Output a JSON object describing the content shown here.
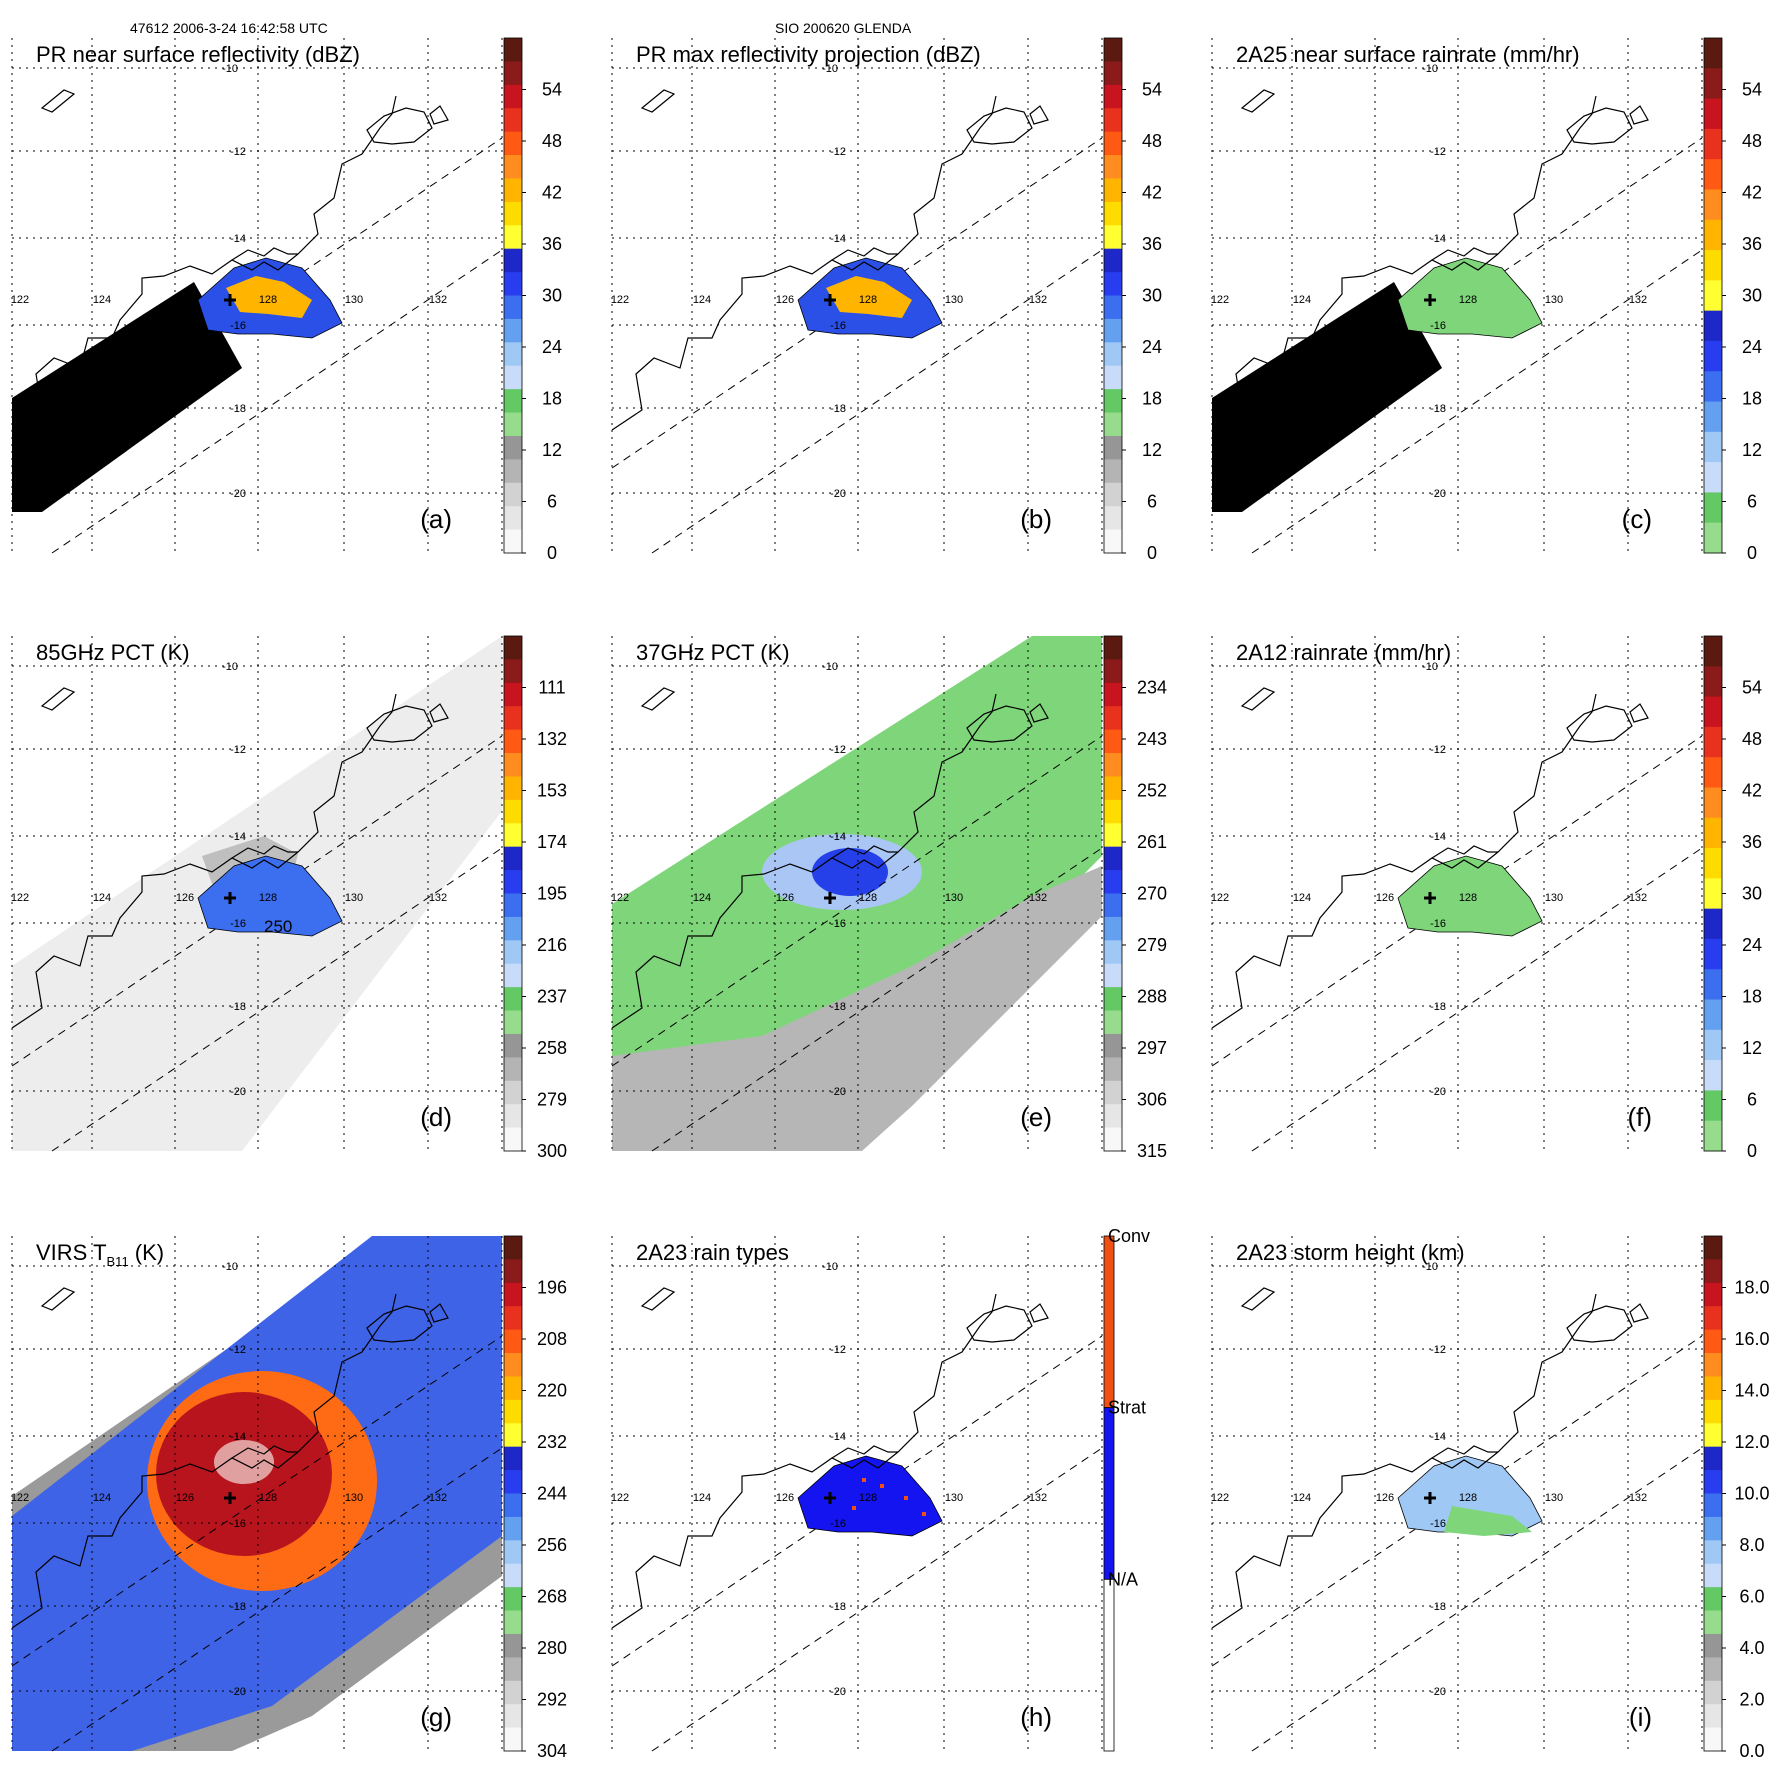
{
  "header": {
    "orbit_time": "47612 2006-3-24 16:42:58 UTC",
    "storm_id": "SIO 200620 GLENDA"
  },
  "map": {
    "lon_ticks": [
      "122",
      "124",
      "126",
      "128",
      "130",
      "132"
    ],
    "lat_ticks": [
      "-10",
      "-12",
      "-14",
      "-16",
      "-18",
      "-20"
    ]
  },
  "panels": [
    {
      "id": "a",
      "title": "PR near surface reflectivity (dBZ)",
      "letter": "(a)",
      "colorbar": {
        "labels": [
          "54",
          "48",
          "42",
          "36",
          "30",
          "24",
          "18",
          "12",
          "6",
          "0"
        ],
        "colors": [
          "#5a1a10",
          "#8b1a1a",
          "#c8141e",
          "#e8321e",
          "#ff5a14",
          "#ff8c1e",
          "#ffb400",
          "#ffdc00",
          "#ffff32",
          "#1e28c8",
          "#283cf0",
          "#3c6ef0",
          "#64a0f0",
          "#a0c8f5",
          "#c8dcfa",
          "#64c864",
          "#96dc8c",
          "#969696",
          "#b4b4b4",
          "#d2d2d2",
          "#e6e6e6",
          "#f8f8f8"
        ]
      }
    },
    {
      "id": "b",
      "title": "PR max reflectivity projection (dBZ)",
      "letter": "(b)",
      "colorbar": {
        "labels": [
          "54",
          "48",
          "42",
          "36",
          "30",
          "24",
          "18",
          "12",
          "6",
          "0"
        ],
        "colors": [
          "#5a1a10",
          "#8b1a1a",
          "#c8141e",
          "#e8321e",
          "#ff5a14",
          "#ff8c1e",
          "#ffb400",
          "#ffdc00",
          "#ffff32",
          "#1e28c8",
          "#283cf0",
          "#3c6ef0",
          "#64a0f0",
          "#a0c8f5",
          "#c8dcfa",
          "#64c864",
          "#96dc8c",
          "#969696",
          "#b4b4b4",
          "#d2d2d2",
          "#e6e6e6",
          "#f8f8f8"
        ]
      }
    },
    {
      "id": "c",
      "title": "2A25 near surface rainrate (mm/hr)",
      "letter": "(c)",
      "colorbar": {
        "labels": [
          "54",
          "48",
          "42",
          "36",
          "30",
          "24",
          "18",
          "12",
          "6",
          "0"
        ],
        "colors": [
          "#5a1a10",
          "#8b1a1a",
          "#c8141e",
          "#e8321e",
          "#ff5a14",
          "#ff8c1e",
          "#ffb400",
          "#ffdc00",
          "#ffff32",
          "#1e28c8",
          "#283cf0",
          "#3c6ef0",
          "#64a0f0",
          "#a0c8f5",
          "#c8dcfa",
          "#64c864",
          "#96dc8c"
        ]
      }
    },
    {
      "id": "d",
      "title": "85GHz PCT (K)",
      "letter": "(d)",
      "colorbar": {
        "labels": [
          "111",
          "132",
          "153",
          "174",
          "195",
          "216",
          "237",
          "258",
          "279",
          "300"
        ],
        "colors": [
          "#5a1a10",
          "#8b1a1a",
          "#c8141e",
          "#e8321e",
          "#ff5a14",
          "#ff8c1e",
          "#ffb400",
          "#ffdc00",
          "#ffff32",
          "#1e28c8",
          "#283cf0",
          "#3c6ef0",
          "#64a0f0",
          "#a0c8f5",
          "#c8dcfa",
          "#64c864",
          "#96dc8c",
          "#969696",
          "#b4b4b4",
          "#d2d2d2",
          "#e6e6e6",
          "#f8f8f8"
        ]
      },
      "contour_label": "250"
    },
    {
      "id": "e",
      "title": "37GHz PCT (K)",
      "letter": "(e)",
      "colorbar": {
        "labels": [
          "234",
          "243",
          "252",
          "261",
          "270",
          "279",
          "288",
          "297",
          "306",
          "315"
        ],
        "colors": [
          "#5a1a10",
          "#8b1a1a",
          "#c8141e",
          "#e8321e",
          "#ff5a14",
          "#ff8c1e",
          "#ffb400",
          "#ffdc00",
          "#ffff32",
          "#1e28c8",
          "#283cf0",
          "#3c6ef0",
          "#64a0f0",
          "#a0c8f5",
          "#c8dcfa",
          "#64c864",
          "#96dc8c",
          "#969696",
          "#b4b4b4",
          "#d2d2d2",
          "#e6e6e6",
          "#f8f8f8"
        ]
      }
    },
    {
      "id": "f",
      "title": "2A12 rainrate (mm/hr)",
      "letter": "(f)",
      "colorbar": {
        "labels": [
          "54",
          "48",
          "42",
          "36",
          "30",
          "24",
          "18",
          "12",
          "6",
          "0"
        ],
        "colors": [
          "#5a1a10",
          "#8b1a1a",
          "#c8141e",
          "#e8321e",
          "#ff5a14",
          "#ff8c1e",
          "#ffb400",
          "#ffdc00",
          "#ffff32",
          "#1e28c8",
          "#283cf0",
          "#3c6ef0",
          "#64a0f0",
          "#a0c8f5",
          "#c8dcfa",
          "#64c864",
          "#96dc8c"
        ]
      }
    },
    {
      "id": "g",
      "title": "VIRS T",
      "title_sub": "B11",
      "title_suffix": " (K)",
      "letter": "(g)",
      "colorbar": {
        "labels": [
          "196",
          "208",
          "220",
          "232",
          "244",
          "256",
          "268",
          "280",
          "292",
          "304"
        ],
        "colors": [
          "#5a1a10",
          "#8b1a1a",
          "#c8141e",
          "#e8321e",
          "#ff5a14",
          "#ff8c1e",
          "#ffb400",
          "#ffdc00",
          "#ffff32",
          "#1e28c8",
          "#283cf0",
          "#3c6ef0",
          "#64a0f0",
          "#a0c8f5",
          "#c8dcfa",
          "#64c864",
          "#96dc8c",
          "#969696",
          "#b4b4b4",
          "#d2d2d2",
          "#e6e6e6",
          "#f8f8f8"
        ]
      }
    },
    {
      "id": "h",
      "title": "2A23 rain types",
      "letter": "(h)",
      "legend": {
        "labels": [
          "Conv",
          "Strat",
          "N/A"
        ],
        "colors": [
          "#f05014",
          "#1414f0",
          "#ffffff"
        ]
      }
    },
    {
      "id": "i",
      "title": "2A23 storm height (km)",
      "letter": "(i)",
      "colorbar": {
        "labels": [
          "18.0",
          "16.0",
          "14.0",
          "12.0",
          "10.0",
          "8.0",
          "6.0",
          "4.0",
          "2.0",
          "0.0"
        ],
        "colors": [
          "#5a1a10",
          "#8b1a1a",
          "#c8141e",
          "#e8321e",
          "#ff5a14",
          "#ff8c1e",
          "#ffb400",
          "#ffdc00",
          "#ffff32",
          "#1e28c8",
          "#283cf0",
          "#3c6ef0",
          "#64a0f0",
          "#a0c8f5",
          "#c8dcfa",
          "#64c864",
          "#96dc8c",
          "#969696",
          "#b4b4b4",
          "#d2d2d2",
          "#e6e6e6",
          "#f8f8f8"
        ]
      }
    }
  ]
}
